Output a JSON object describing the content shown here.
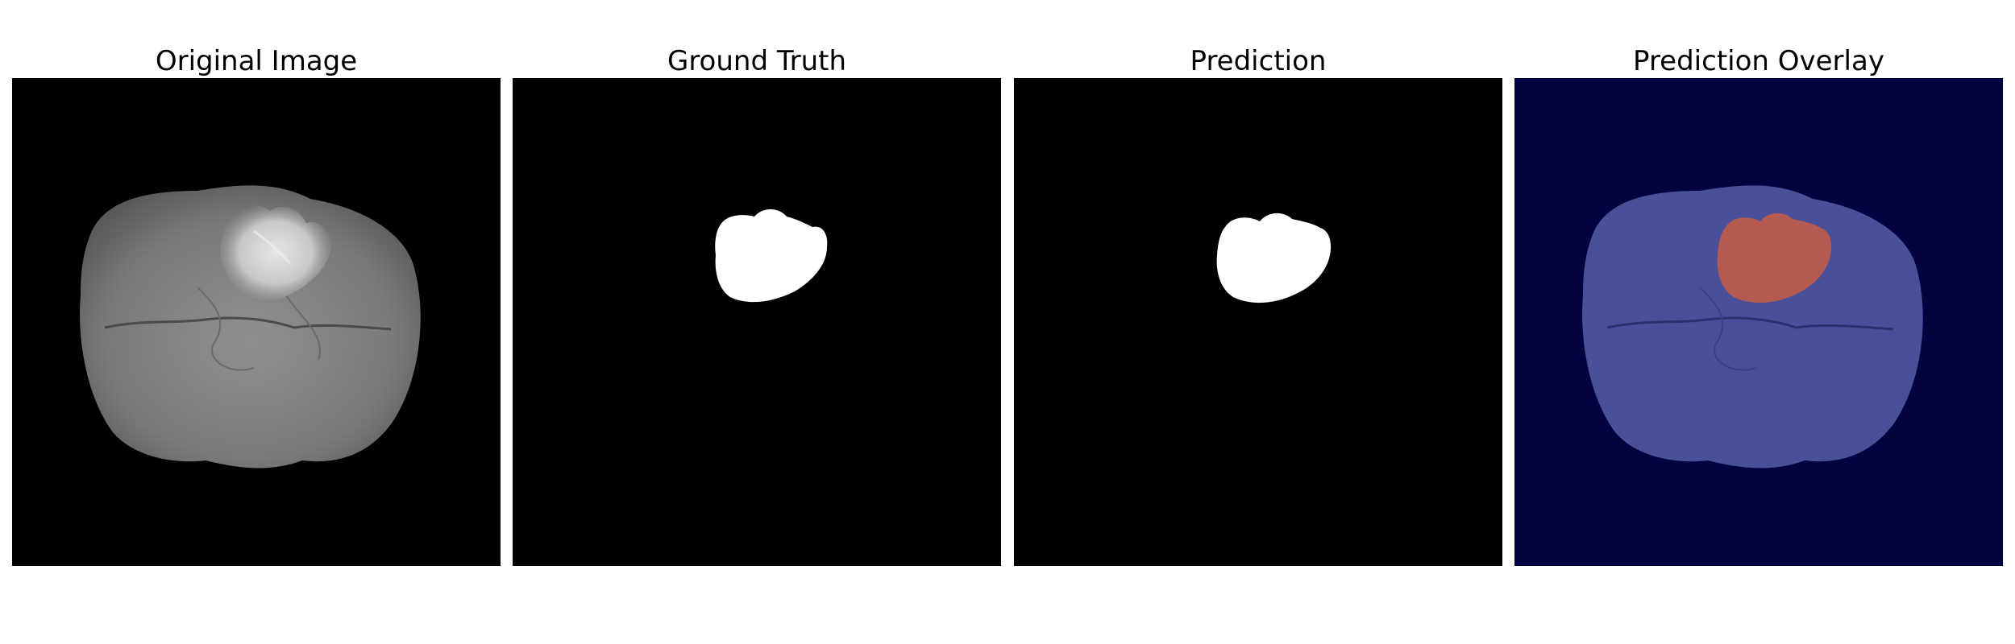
{
  "figure": {
    "panels": [
      {
        "id": "original",
        "title": "Original Image"
      },
      {
        "id": "ground-truth",
        "title": "Ground Truth"
      },
      {
        "id": "prediction",
        "title": "Prediction"
      },
      {
        "id": "overlay",
        "title": "Prediction Overlay"
      }
    ]
  },
  "colors": {
    "background": "#000000",
    "mask": "#ffffff",
    "overlay_background": "#02023f",
    "overlay_tissue": "#4a4f9a",
    "overlay_tumor": "#b45a50"
  }
}
